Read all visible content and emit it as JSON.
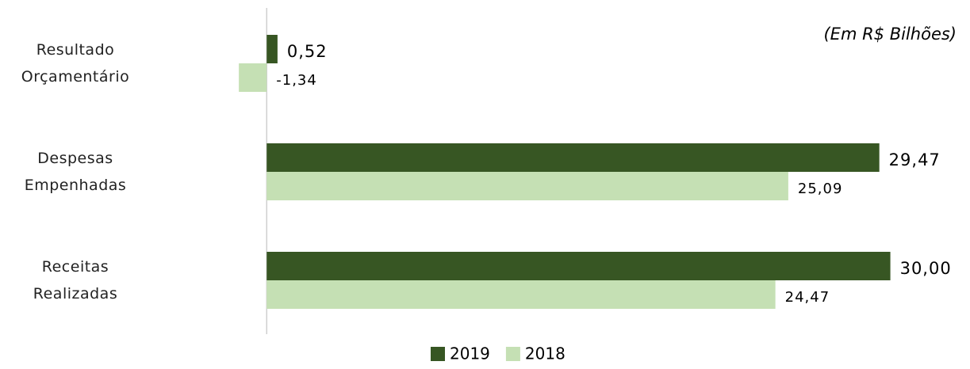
{
  "chart_data": {
    "type": "hbar",
    "annotation": "(Em R$ Bilhões)",
    "categories": [
      "Resultado Orçamentário",
      "Despesas Empenhadas",
      "Receitas Realizadas"
    ],
    "series": [
      {
        "name": "2019",
        "color": "#375623",
        "values": [
          0.52,
          29.47,
          30.0
        ],
        "value_labels": [
          "0,52",
          "29,47",
          "30,00"
        ]
      },
      {
        "name": "2018",
        "color": "#c5e0b4",
        "values": [
          -1.34,
          25.09,
          24.47
        ],
        "value_labels": [
          "-1,34",
          "25,09",
          "24,47"
        ]
      }
    ],
    "xlim": [
      -6,
      32
    ]
  }
}
